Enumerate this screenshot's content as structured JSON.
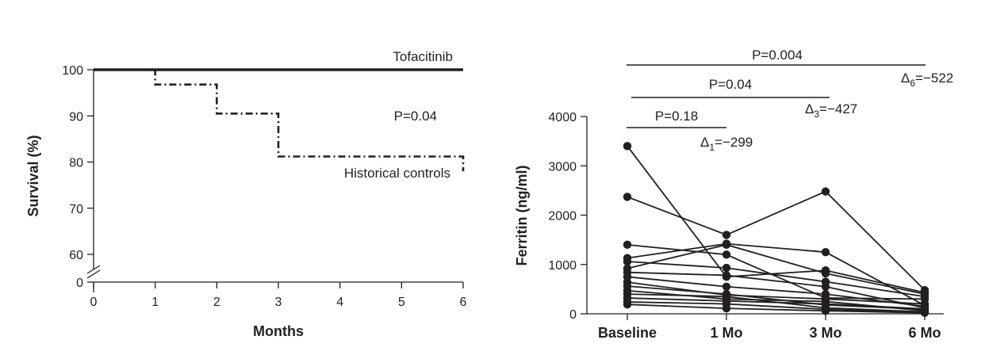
{
  "chart_data": [
    {
      "type": "line",
      "chart_kind": "step",
      "xlabel": "Months",
      "ylabel": "Survival (%)",
      "xlim": [
        0,
        6
      ],
      "ylim": [
        60,
        100
      ],
      "axis_break": true,
      "x_ticks": [
        "0",
        "1",
        "2",
        "3",
        "4",
        "5",
        "6"
      ],
      "y_ticks": [
        "0",
        "60",
        "70",
        "80",
        "90",
        "100"
      ],
      "grid": false,
      "series": [
        {
          "name": "Tofacitinib",
          "style": "solid",
          "x": [
            0,
            6
          ],
          "y": [
            100,
            100
          ]
        },
        {
          "name": "Historical controls",
          "style": "dash-dot",
          "x": [
            0,
            1,
            2,
            3,
            6,
            6
          ],
          "y": [
            100,
            96.8,
            90.5,
            81.2,
            81.2,
            78
          ]
        }
      ],
      "annotations": [
        {
          "text": "P=0.04"
        }
      ]
    },
    {
      "type": "line",
      "chart_kind": "paired-dot",
      "xlabel": "",
      "ylabel": "Ferritin (ng/ml)",
      "categories": [
        "Baseline",
        "1 Mo",
        "3 Mo",
        "6 Mo"
      ],
      "ylim": [
        0,
        4000
      ],
      "y_ticks": [
        "0",
        "1000",
        "2000",
        "3000",
        "4000"
      ],
      "grid": false,
      "series": [
        {
          "values": [
            3400,
            750,
            880,
            430
          ]
        },
        {
          "values": [
            2370,
            1600,
            2480,
            480
          ]
        },
        {
          "values": [
            1400,
            1200,
            320,
            300
          ]
        },
        {
          "values": [
            1130,
            1420,
            1250,
            170
          ]
        },
        {
          "values": [
            1060,
            930,
            650,
            350
          ]
        },
        {
          "values": [
            920,
            1400,
            820,
            400
          ]
        },
        {
          "values": [
            840,
            780,
            550,
            120
          ]
        },
        {
          "values": [
            750,
            550,
            400,
            150
          ]
        },
        {
          "values": [
            640,
            380,
            300,
            200
          ]
        },
        {
          "values": [
            560,
            400,
            180,
            90
          ]
        },
        {
          "values": [
            470,
            300,
            250,
            60
          ]
        },
        {
          "values": [
            400,
            350,
            120,
            40
          ]
        },
        {
          "values": [
            320,
            260,
            200,
            100
          ]
        },
        {
          "values": [
            240,
            200,
            90,
            30
          ]
        },
        {
          "values": [
            190,
            110,
            60,
            20
          ]
        }
      ],
      "comparisons": [
        {
          "p_text": "P=0.18",
          "delta_symbol": "Δ",
          "delta_sub": "1",
          "delta_value": "=−299"
        },
        {
          "p_text": "P=0.04",
          "delta_symbol": "Δ",
          "delta_sub": "3",
          "delta_value": "=−427"
        },
        {
          "p_text": "P=0.004",
          "delta_symbol": "Δ",
          "delta_sub": "6",
          "delta_value": "=−522"
        }
      ]
    }
  ]
}
